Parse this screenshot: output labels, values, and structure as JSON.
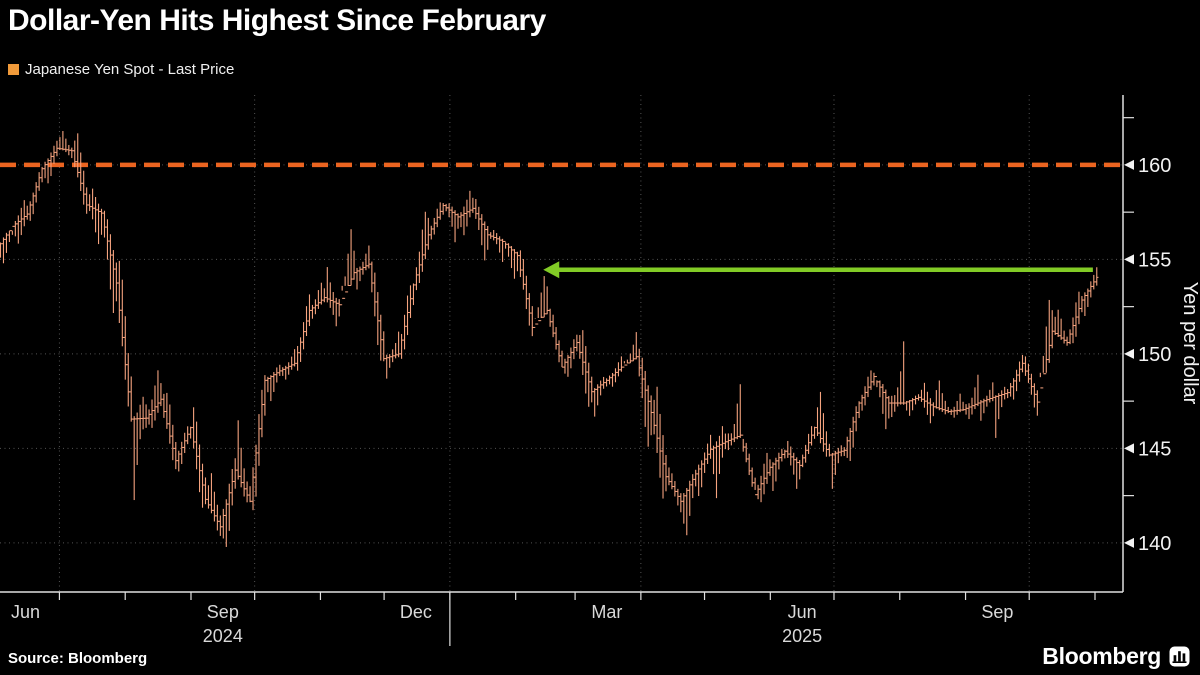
{
  "title": "Dollar-Yen Hits Highest Since February",
  "legend": {
    "label": "Japanese Yen Spot - Last Price",
    "swatch_color": "#F09A3A"
  },
  "source": "Source:  Bloomberg",
  "brand": {
    "logo_text": "Bloomberg"
  },
  "colors": {
    "background": "#000000",
    "bars": "#F5A37F",
    "reference_line": "#EB6420",
    "annotation_line": "#82CB26",
    "grid": "#9A9A9A",
    "axis": "#E0E0E0",
    "axis_text": "#F2F2F2",
    "month_text": "#D9D9D9"
  },
  "chart_data": {
    "type": "ohlc-bar",
    "title": "Dollar-Yen Hits Highest Since February",
    "series_name": "Japanese Yen Spot - Last Price",
    "ylabel": "Yen per dollar",
    "ylim": [
      137.4,
      163.7
    ],
    "yticks": [
      140,
      145,
      150,
      155,
      160
    ],
    "yticks_minor": [
      142.5,
      147.5,
      152.5,
      157.5,
      162.5
    ],
    "grid": "dotted",
    "granularity": "weekly",
    "start_week": "2024-06-03",
    "x_end": "2025-11-01",
    "first_open": 155.6,
    "weeks_hlc": [
      [
        156.5,
        154.6,
        156.75
      ],
      [
        158.3,
        155.7,
        157.4
      ],
      [
        159.9,
        157.0,
        159.8
      ],
      [
        161.3,
        158.8,
        160.88
      ],
      [
        161.95,
        160.3,
        160.75
      ],
      [
        161.8,
        157.3,
        157.88
      ],
      [
        158.9,
        155.4,
        157.45
      ],
      [
        157.6,
        151.9,
        153.75
      ],
      [
        155.2,
        146.4,
        146.55
      ],
      [
        147.9,
        141.7,
        146.6
      ],
      [
        149.4,
        146.0,
        147.6
      ],
      [
        148.1,
        143.9,
        144.35
      ],
      [
        146.2,
        143.7,
        146.1
      ],
      [
        147.2,
        141.8,
        142.3
      ],
      [
        143.8,
        140.3,
        140.85
      ],
      [
        144.5,
        139.58,
        143.85
      ],
      [
        146.5,
        142.1,
        142.2
      ],
      [
        148.9,
        141.65,
        148.6
      ],
      [
        149.5,
        147.3,
        149.1
      ],
      [
        150.3,
        148.6,
        149.5
      ],
      [
        153.2,
        149.1,
        152.3
      ],
      [
        153.9,
        151.8,
        152.98
      ],
      [
        154.7,
        151.3,
        152.6
      ],
      [
        156.75,
        153.6,
        154.3
      ],
      [
        155.9,
        153.3,
        154.75
      ],
      [
        154.9,
        149.5,
        149.75
      ],
      [
        151.2,
        148.65,
        150.0
      ],
      [
        153.8,
        149.7,
        153.65
      ],
      [
        157.9,
        153.35,
        156.3
      ],
      [
        158.08,
        156.0,
        157.85
      ],
      [
        158.0,
        155.9,
        157.25
      ],
      [
        158.87,
        156.2,
        157.7
      ],
      [
        158.2,
        154.9,
        156.3
      ],
      [
        156.6,
        154.8,
        155.95
      ],
      [
        155.9,
        153.7,
        155.2
      ],
      [
        155.5,
        150.9,
        151.4
      ],
      [
        154.5,
        151.9,
        152.3
      ],
      [
        152.4,
        149.3,
        149.3
      ],
      [
        151.1,
        148.6,
        150.6
      ],
      [
        151.3,
        146.9,
        148.0
      ],
      [
        148.8,
        146.55,
        148.6
      ],
      [
        149.9,
        148.2,
        149.3
      ],
      [
        151.2,
        149.5,
        149.85
      ],
      [
        150.3,
        144.55,
        146.9
      ],
      [
        148.3,
        142.05,
        143.5
      ],
      [
        144.1,
        141.6,
        142.2
      ],
      [
        143.9,
        139.89,
        143.65
      ],
      [
        145.9,
        142.2,
        144.95
      ],
      [
        146.2,
        142.35,
        145.35
      ],
      [
        148.65,
        144.9,
        145.7
      ],
      [
        145.5,
        142.8,
        142.55
      ],
      [
        144.9,
        142.1,
        144.0
      ],
      [
        145.0,
        142.5,
        144.85
      ],
      [
        145.5,
        142.8,
        144.1
      ],
      [
        146.2,
        144.0,
        146.1
      ],
      [
        148.03,
        144.5,
        144.65
      ],
      [
        145.2,
        142.68,
        144.9
      ],
      [
        147.5,
        144.2,
        147.4
      ],
      [
        149.2,
        146.9,
        148.8
      ],
      [
        148.6,
        145.85,
        147.4
      ],
      [
        150.92,
        146.6,
        147.4
      ],
      [
        147.9,
        146.6,
        147.7
      ],
      [
        148.5,
        146.2,
        147.2
      ],
      [
        148.8,
        146.8,
        146.95
      ],
      [
        147.9,
        146.6,
        147.05
      ],
      [
        149.0,
        146.5,
        147.4
      ],
      [
        148.5,
        146.3,
        147.7
      ],
      [
        148.3,
        145.5,
        147.95
      ],
      [
        149.95,
        147.5,
        149.5
      ],
      [
        149.9,
        146.58,
        147.45
      ],
      [
        153.25,
        149.0,
        151.2
      ],
      [
        152.6,
        150.4,
        150.6
      ],
      [
        153.3,
        150.45,
        152.85
      ],
      [
        154.6,
        152.0,
        154.05
      ]
    ],
    "x_gridlines": [
      "2024-07-01",
      "2024-10-01",
      "2025-01-01",
      "2025-04-01",
      "2025-07-01",
      "2025-10-01"
    ],
    "x_month_ticks": [
      "2024-07-01",
      "2024-08-01",
      "2024-09-01",
      "2024-10-01",
      "2024-11-01",
      "2024-12-01",
      "2025-01-01",
      "2025-02-01",
      "2025-03-01",
      "2025-04-01",
      "2025-05-01",
      "2025-06-01",
      "2025-07-01",
      "2025-08-01",
      "2025-09-01",
      "2025-10-01",
      "2025-11-01"
    ],
    "x_year_tick": "2025-01-01",
    "x_labels": [
      {
        "text": "Jun",
        "date": "2024-06-15"
      },
      {
        "text": "Sep",
        "date": "2024-09-16"
      },
      {
        "text": "Dec",
        "date": "2024-12-16"
      },
      {
        "text": "Mar",
        "date": "2025-03-16"
      },
      {
        "text": "Jun",
        "date": "2025-06-16"
      },
      {
        "text": "Sep",
        "date": "2025-09-16"
      }
    ],
    "x_year_labels": [
      {
        "text": "2024",
        "date": "2024-09-16"
      },
      {
        "text": "2025",
        "date": "2025-06-16"
      }
    ],
    "reference_line": {
      "value": 160,
      "style": "dashed"
    },
    "annotation": {
      "type": "arrow-line",
      "value": 154.45,
      "from": "2025-02-14",
      "to": "2025-10-31",
      "direction": "left"
    }
  }
}
